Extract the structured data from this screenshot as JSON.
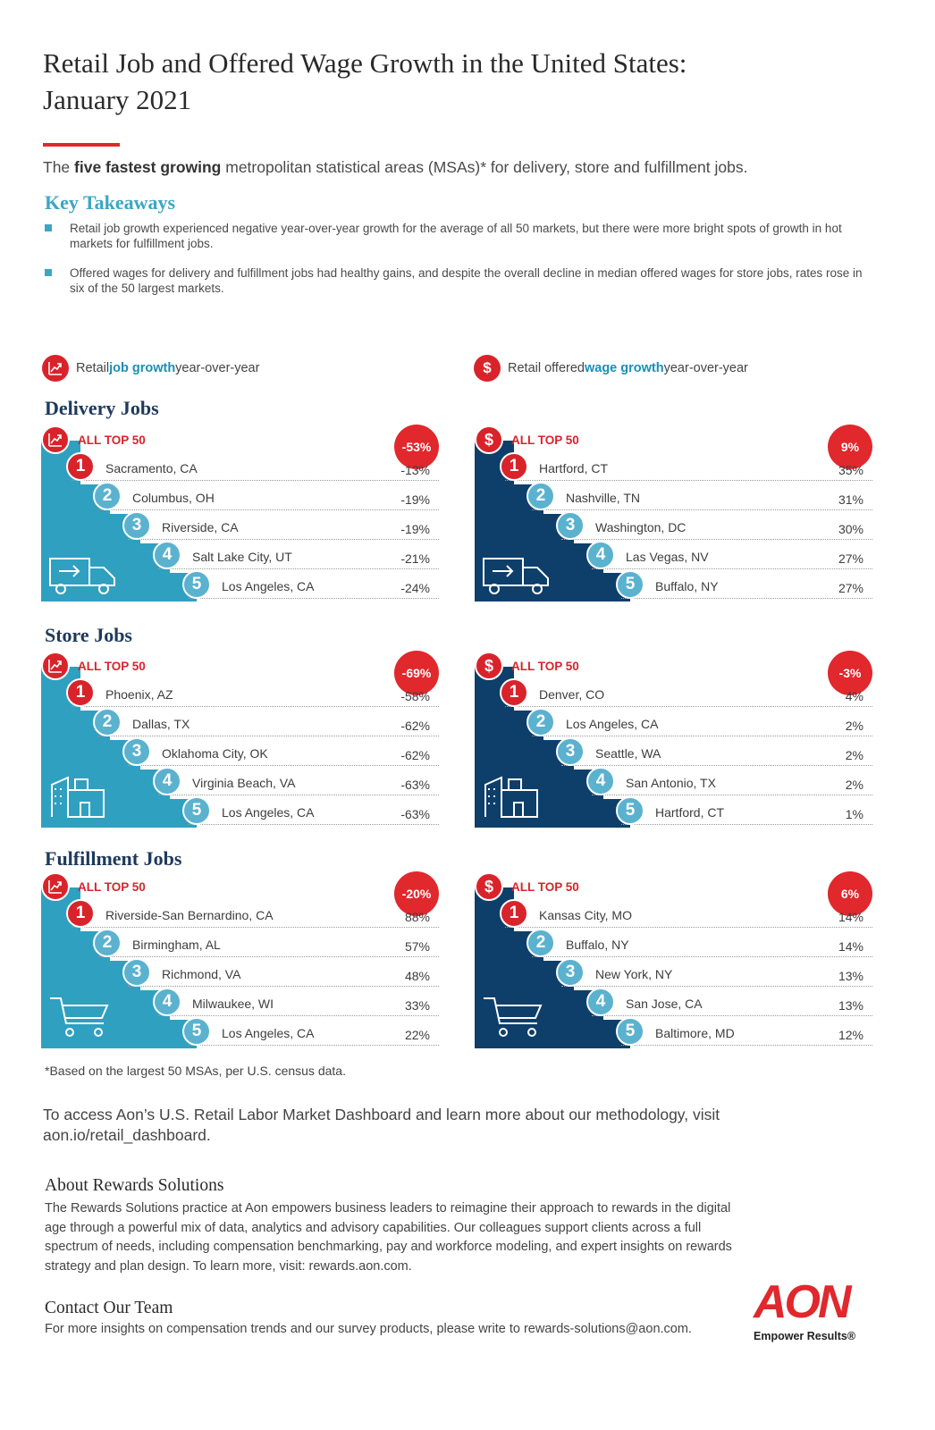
{
  "title": [
    "Retail Job and Offered Wage Growth in the United States:",
    "January 2021"
  ],
  "intro": {
    "pre": "The ",
    "bold": "five fastest growing",
    "post": " metropolitan statistical areas (MSAs)* for delivery, store and fulfillment jobs."
  },
  "key_takeaways": {
    "title": "Key Takeaways",
    "bullets": [
      "Retail job growth experienced negative year-over-year growth for the average of all 50 markets, but there were more bright spots of growth in hot markets for fulfillment jobs.",
      "Offered wages for delivery and fulfillment jobs had healthy gains, and despite the overall decline in median offered wages for store jobs, rates rose in six of the 50 largest markets."
    ]
  },
  "legend": {
    "job": {
      "pre": "Retail ",
      "hl": "job growth",
      "post": " year-over-year",
      "icon": "trend-up-icon"
    },
    "wage": {
      "pre": "Retail offered ",
      "hl": "wage growth",
      "post": " year-over-year",
      "icon": "dollar-icon"
    }
  },
  "colors": {
    "red": "#d9232b",
    "teal": "#2fa0c0",
    "navy": "#0e3f6a",
    "light_teal": "#5ab2cf"
  },
  "all_top_label": "ALL TOP 50",
  "sections": [
    {
      "title": "Delivery Jobs",
      "icon": "delivery-truck-icon",
      "job": {
        "all": "-53%",
        "rows": [
          {
            "rank": "1",
            "city": "Sacramento, CA",
            "value": "-13%"
          },
          {
            "rank": "2",
            "city": "Columbus, OH",
            "value": "-19%"
          },
          {
            "rank": "3",
            "city": "Riverside, CA",
            "value": "-19%"
          },
          {
            "rank": "4",
            "city": "Salt Lake City, UT",
            "value": "-21%"
          },
          {
            "rank": "5",
            "city": "Los Angeles, CA",
            "value": "-24%"
          }
        ]
      },
      "wage": {
        "all": "9%",
        "rows": [
          {
            "rank": "1",
            "city": "Hartford, CT",
            "value": "35%"
          },
          {
            "rank": "2",
            "city": "Nashville, TN",
            "value": "31%"
          },
          {
            "rank": "3",
            "city": "Washington, DC",
            "value": "30%"
          },
          {
            "rank": "4",
            "city": "Las Vegas, NV",
            "value": "27%"
          },
          {
            "rank": "5",
            "city": "Buffalo, NY",
            "value": "27%"
          }
        ]
      }
    },
    {
      "title": "Store Jobs",
      "icon": "store-building-icon",
      "job": {
        "all": "-69%",
        "rows": [
          {
            "rank": "1",
            "city": "Phoenix, AZ",
            "value": "-58%"
          },
          {
            "rank": "2",
            "city": "Dallas, TX",
            "value": "-62%"
          },
          {
            "rank": "3",
            "city": "Oklahoma City, OK",
            "value": "-62%"
          },
          {
            "rank": "4",
            "city": "Virginia Beach, VA",
            "value": "-63%"
          },
          {
            "rank": "5",
            "city": "Los Angeles, CA",
            "value": "-63%"
          }
        ]
      },
      "wage": {
        "all": "-3%",
        "rows": [
          {
            "rank": "1",
            "city": "Denver, CO",
            "value": "4%"
          },
          {
            "rank": "2",
            "city": "Los Angeles, CA",
            "value": "2%"
          },
          {
            "rank": "3",
            "city": "Seattle, WA",
            "value": "2%"
          },
          {
            "rank": "4",
            "city": "San Antonio, TX",
            "value": "2%"
          },
          {
            "rank": "5",
            "city": "Hartford, CT",
            "value": "1%"
          }
        ]
      }
    },
    {
      "title": "Fulfillment Jobs",
      "icon": "shopping-cart-icon",
      "job": {
        "all": "-20%",
        "rows": [
          {
            "rank": "1",
            "city": "Riverside-San Bernardino, CA",
            "value": "88%"
          },
          {
            "rank": "2",
            "city": "Birmingham, AL",
            "value": "57%"
          },
          {
            "rank": "3",
            "city": "Richmond, VA",
            "value": "48%"
          },
          {
            "rank": "4",
            "city": "Milwaukee, WI",
            "value": "33%"
          },
          {
            "rank": "5",
            "city": "Los Angeles, CA",
            "value": "22%"
          }
        ]
      },
      "wage": {
        "all": "6%",
        "rows": [
          {
            "rank": "1",
            "city": "Kansas City, MO",
            "value": "14%"
          },
          {
            "rank": "2",
            "city": "Buffalo, NY",
            "value": "14%"
          },
          {
            "rank": "3",
            "city": "New York, NY",
            "value": "13%"
          },
          {
            "rank": "4",
            "city": "San Jose, CA",
            "value": "13%"
          },
          {
            "rank": "5",
            "city": "Baltimore, MD",
            "value": "12%"
          }
        ]
      }
    }
  ],
  "footnote": "*Based on the largest 50 MSAs, per U.S. census data.",
  "access": "To access Aon’s U.S. Retail Labor Market Dashboard and learn more about our methodology, visit aon.io/retail_dashboard.",
  "about": {
    "title": "About Rewards Solutions",
    "body": "The Rewards Solutions practice at Aon empowers business leaders to reimagine their approach to rewards in the digital age through a powerful mix of data, analytics and advisory capabilities. Our colleagues support clients across a full spectrum of needs, including compensation benchmarking, pay and workforce modeling, and expert insights on rewards strategy and plan design. To learn more, visit: rewards.aon.com."
  },
  "contact": {
    "title": "Contact Our Team",
    "body": "For more insights on compensation trends and our survey products, please write to rewards-solutions@aon.com."
  },
  "logo": {
    "word": "AON",
    "tagline": "Empower Results®"
  }
}
